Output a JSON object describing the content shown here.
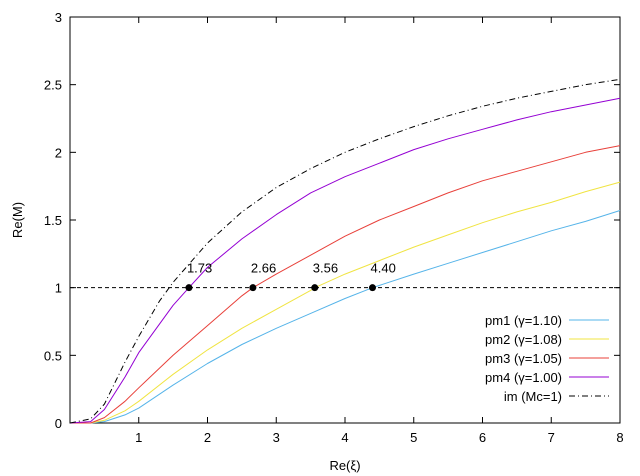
{
  "chart_data": {
    "type": "line",
    "xlabel": "Re(ξ)",
    "ylabel": "Re(M)",
    "xlim": [
      0,
      8
    ],
    "ylim": [
      0,
      3
    ],
    "xticks": [
      1,
      2,
      3,
      4,
      5,
      6,
      7,
      8
    ],
    "yticks": [
      0,
      0.5,
      1,
      1.5,
      2,
      2.5,
      3
    ],
    "ytick_labels": [
      "0",
      "0.5",
      "1",
      "1.5",
      "2",
      "2.5",
      "3"
    ],
    "grid": false,
    "legend_position": "bottom-right",
    "reference_line": {
      "y": 1,
      "style": "dashed",
      "color": "#000000"
    },
    "series": [
      {
        "name": "pm1 (γ=1.10)",
        "color": "#56b4e9",
        "style": "solid",
        "x": [
          0,
          0.3,
          0.5,
          0.8,
          1,
          1.5,
          2,
          2.5,
          3,
          3.5,
          4,
          4.4,
          5,
          5.5,
          6,
          6.5,
          7,
          7.5,
          8
        ],
        "y": [
          0,
          0,
          0.01,
          0.06,
          0.11,
          0.28,
          0.44,
          0.58,
          0.7,
          0.81,
          0.92,
          1.0,
          1.1,
          1.18,
          1.26,
          1.34,
          1.42,
          1.49,
          1.57
        ]
      },
      {
        "name": "pm2 (γ=1.08)",
        "color": "#f0e442",
        "style": "solid",
        "x": [
          0,
          0.3,
          0.5,
          0.8,
          1,
          1.5,
          2,
          2.5,
          3,
          3.5,
          3.56,
          4,
          4.5,
          5,
          5.5,
          6,
          6.5,
          7,
          7.5,
          8
        ],
        "y": [
          0,
          0,
          0.02,
          0.09,
          0.16,
          0.36,
          0.54,
          0.7,
          0.84,
          0.98,
          1.0,
          1.1,
          1.2,
          1.3,
          1.39,
          1.48,
          1.56,
          1.63,
          1.71,
          1.78
        ]
      },
      {
        "name": "pm3 (γ=1.05)",
        "color": "#e8403a",
        "style": "solid",
        "x": [
          0,
          0.3,
          0.5,
          0.8,
          1,
          1.5,
          2,
          2.5,
          2.66,
          3,
          3.5,
          4,
          4.5,
          5,
          5.5,
          6,
          6.5,
          7,
          7.5,
          8
        ],
        "y": [
          0,
          0,
          0.04,
          0.16,
          0.26,
          0.5,
          0.72,
          0.94,
          1.0,
          1.1,
          1.24,
          1.38,
          1.5,
          1.6,
          1.7,
          1.79,
          1.86,
          1.93,
          2.0,
          2.05
        ]
      },
      {
        "name": "pm4 (γ=1.00)",
        "color": "#9400d3",
        "style": "solid",
        "x": [
          0,
          0.3,
          0.5,
          0.8,
          1,
          1.5,
          1.73,
          2,
          2.5,
          3,
          3.5,
          4,
          4.5,
          5,
          5.5,
          6,
          6.5,
          7,
          7.5,
          8
        ],
        "y": [
          0,
          0.01,
          0.1,
          0.34,
          0.52,
          0.87,
          1.0,
          1.15,
          1.36,
          1.54,
          1.7,
          1.82,
          1.92,
          2.02,
          2.1,
          2.17,
          2.24,
          2.3,
          2.35,
          2.4
        ]
      },
      {
        "name": "im (Mc=1)",
        "color": "#000000",
        "style": "dash-dot",
        "x": [
          0,
          0.3,
          0.5,
          0.8,
          1,
          1.3,
          1.5,
          2,
          2.5,
          3,
          3.5,
          4,
          4.5,
          5,
          5.5,
          6,
          6.5,
          7,
          7.5,
          8
        ],
        "y": [
          0,
          0.03,
          0.14,
          0.45,
          0.64,
          0.9,
          1.04,
          1.33,
          1.56,
          1.74,
          1.88,
          2.0,
          2.1,
          2.19,
          2.27,
          2.34,
          2.4,
          2.45,
          2.5,
          2.54
        ]
      }
    ],
    "annotations": [
      {
        "x": 1.73,
        "y": 1,
        "label": "1.73"
      },
      {
        "x": 2.66,
        "y": 1,
        "label": "2.66"
      },
      {
        "x": 3.56,
        "y": 1,
        "label": "3.56"
      },
      {
        "x": 4.4,
        "y": 1,
        "label": "4.40"
      }
    ]
  }
}
